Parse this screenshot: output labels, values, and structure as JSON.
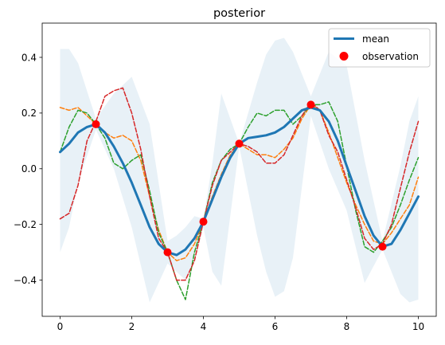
{
  "chart_data": {
    "type": "line",
    "title": "posterior",
    "xlabel": "",
    "ylabel": "",
    "xlim": [
      -0.5,
      10.5
    ],
    "ylim": [
      -0.53,
      0.523
    ],
    "xticks": [
      0,
      2,
      4,
      6,
      8,
      10
    ],
    "xtick_labels": [
      "0",
      "2",
      "4",
      "6",
      "8",
      "10"
    ],
    "yticks": [
      -0.4,
      -0.2,
      0.0,
      0.2,
      0.4
    ],
    "ytick_labels": [
      "−0.4",
      "−0.2",
      "0.0",
      "0.2",
      "0.4"
    ],
    "grid": false,
    "legend_position": "top-right",
    "legend": [
      {
        "label": "mean",
        "kind": "line",
        "color": "#1f77b4"
      },
      {
        "label": "observation",
        "kind": "marker",
        "color": "#ff0000"
      }
    ],
    "band": {
      "color": "#1f77b4",
      "opacity": 0.1,
      "x": [
        0,
        0.25,
        0.5,
        1,
        1.5,
        2,
        2.5,
        3,
        3.25,
        3.5,
        3.75,
        4,
        4.25,
        4.5,
        5,
        5.5,
        5.75,
        6,
        6.25,
        6.5,
        7,
        7.5,
        8,
        8.5,
        9,
        9.5,
        9.75,
        10
      ],
      "upper": [
        0.43,
        0.43,
        0.38,
        0.18,
        0.27,
        0.33,
        0.16,
        -0.26,
        -0.24,
        -0.21,
        -0.17,
        -0.18,
        0.02,
        0.27,
        0.09,
        0.31,
        0.41,
        0.46,
        0.47,
        0.42,
        0.26,
        0.42,
        0.37,
        0.03,
        -0.26,
        0.01,
        0.17,
        0.26
      ],
      "lower": [
        -0.3,
        -0.21,
        -0.05,
        0.14,
        0.0,
        -0.21,
        -0.48,
        -0.34,
        -0.37,
        -0.4,
        -0.33,
        -0.21,
        -0.37,
        -0.42,
        0.08,
        -0.24,
        -0.37,
        -0.46,
        -0.44,
        -0.32,
        0.19,
        0.0,
        -0.15,
        -0.41,
        -0.29,
        -0.45,
        -0.48,
        -0.47
      ]
    },
    "series": [
      {
        "name": "mean",
        "color": "#1f77b4",
        "style": "solid",
        "x": [
          0,
          0.25,
          0.5,
          0.75,
          1,
          1.25,
          1.5,
          1.75,
          2,
          2.25,
          2.5,
          2.75,
          3,
          3.25,
          3.5,
          3.75,
          4,
          4.25,
          4.5,
          4.75,
          5,
          5.25,
          5.5,
          5.75,
          6,
          6.25,
          6.5,
          6.75,
          7,
          7.25,
          7.5,
          7.75,
          8,
          8.25,
          8.5,
          8.75,
          9,
          9.25,
          9.5,
          9.75,
          10
        ],
        "y": [
          0.06,
          0.09,
          0.13,
          0.15,
          0.16,
          0.13,
          0.08,
          0.02,
          -0.05,
          -0.13,
          -0.21,
          -0.27,
          -0.3,
          -0.31,
          -0.29,
          -0.25,
          -0.19,
          -0.11,
          -0.03,
          0.04,
          0.09,
          0.11,
          0.115,
          0.12,
          0.13,
          0.15,
          0.18,
          0.21,
          0.22,
          0.21,
          0.17,
          0.1,
          0.01,
          -0.08,
          -0.17,
          -0.24,
          -0.28,
          -0.27,
          -0.22,
          -0.16,
          -0.1
        ]
      },
      {
        "name": "",
        "color": "#ff7f0e",
        "style": "dashed",
        "x": [
          0,
          0.25,
          0.5,
          0.75,
          1,
          1.25,
          1.5,
          1.75,
          2,
          2.25,
          2.5,
          2.75,
          3,
          3.25,
          3.5,
          3.75,
          4,
          4.25,
          4.5,
          4.75,
          5,
          5.25,
          5.5,
          5.75,
          6,
          6.25,
          6.5,
          6.75,
          7,
          7.25,
          7.5,
          7.75,
          8,
          8.25,
          8.5,
          8.75,
          9,
          9.25,
          9.5,
          9.75,
          10
        ],
        "y": [
          0.22,
          0.21,
          0.22,
          0.19,
          0.16,
          0.13,
          0.11,
          0.12,
          0.1,
          0.03,
          -0.1,
          -0.22,
          -0.3,
          -0.33,
          -0.32,
          -0.27,
          -0.19,
          -0.1,
          -0.02,
          0.05,
          0.09,
          0.07,
          0.05,
          0.05,
          0.04,
          0.07,
          0.11,
          0.18,
          0.23,
          0.21,
          0.13,
          0.04,
          -0.05,
          -0.13,
          -0.2,
          -0.26,
          -0.27,
          -0.23,
          -0.18,
          -0.13,
          -0.03
        ]
      },
      {
        "name": "",
        "color": "#2ca02c",
        "style": "dashed",
        "x": [
          0,
          0.25,
          0.5,
          0.75,
          1,
          1.25,
          1.5,
          1.75,
          2,
          2.25,
          2.5,
          2.75,
          3,
          3.25,
          3.5,
          3.75,
          4,
          4.25,
          4.5,
          4.75,
          5,
          5.25,
          5.5,
          5.75,
          6,
          6.25,
          6.5,
          6.75,
          7,
          7.25,
          7.5,
          7.75,
          8,
          8.25,
          8.5,
          8.75,
          9,
          9.25,
          9.5,
          9.75,
          10
        ],
        "y": [
          0.06,
          0.15,
          0.21,
          0.2,
          0.16,
          0.11,
          0.02,
          0.0,
          0.03,
          0.05,
          -0.08,
          -0.23,
          -0.3,
          -0.4,
          -0.47,
          -0.3,
          -0.19,
          -0.05,
          0.03,
          0.07,
          0.09,
          0.15,
          0.2,
          0.19,
          0.21,
          0.21,
          0.16,
          0.19,
          0.23,
          0.23,
          0.24,
          0.17,
          0.01,
          -0.15,
          -0.28,
          -0.3,
          -0.26,
          -0.21,
          -0.13,
          -0.04,
          0.04
        ]
      },
      {
        "name": "",
        "color": "#d62728",
        "style": "dashed",
        "x": [
          0,
          0.25,
          0.5,
          0.75,
          1,
          1.25,
          1.5,
          1.75,
          2,
          2.25,
          2.5,
          2.75,
          3,
          3.25,
          3.5,
          3.75,
          4,
          4.25,
          4.5,
          4.75,
          5,
          5.25,
          5.5,
          5.75,
          6,
          6.25,
          6.5,
          6.75,
          7,
          7.25,
          7.5,
          7.75,
          8,
          8.25,
          8.5,
          8.75,
          9,
          9.25,
          9.5,
          9.75,
          10
        ],
        "y": [
          -0.18,
          -0.16,
          -0.06,
          0.1,
          0.17,
          0.26,
          0.28,
          0.29,
          0.2,
          0.07,
          -0.1,
          -0.25,
          -0.3,
          -0.4,
          -0.4,
          -0.33,
          -0.19,
          -0.06,
          0.03,
          0.06,
          0.09,
          0.08,
          0.06,
          0.02,
          0.02,
          0.05,
          0.12,
          0.19,
          0.24,
          0.21,
          0.12,
          0.06,
          -0.04,
          -0.14,
          -0.25,
          -0.29,
          -0.27,
          -0.2,
          -0.07,
          0.06,
          0.17
        ]
      }
    ],
    "observations": {
      "name": "observation",
      "color": "#ff0000",
      "x": [
        1,
        3,
        4,
        5,
        7,
        9
      ],
      "y": [
        0.16,
        -0.3,
        -0.19,
        0.09,
        0.23,
        -0.28
      ]
    }
  }
}
